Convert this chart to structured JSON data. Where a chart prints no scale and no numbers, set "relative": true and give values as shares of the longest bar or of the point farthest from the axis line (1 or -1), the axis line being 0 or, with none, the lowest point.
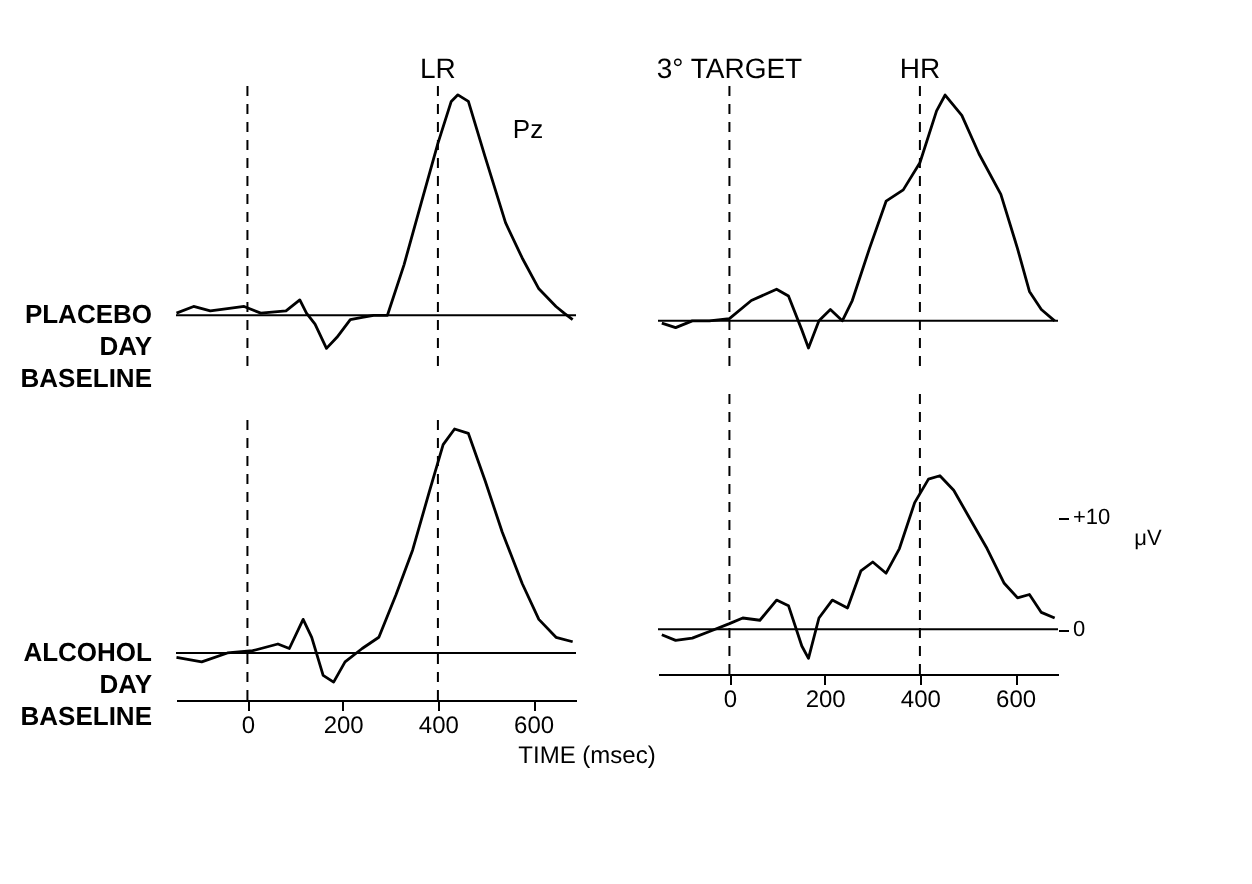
{
  "chart_data": [
    {
      "type": "line",
      "relative": true,
      "ylabel": "PLACEBO DAY BASELINE",
      "annotations": [
        "Pz"
      ],
      "tick_labels": false,
      "grid": false,
      "xlim": [
        -150,
        690
      ],
      "x": [
        -149,
        -113,
        -78,
        -42,
        -7,
        28,
        81,
        110,
        124,
        142,
        166,
        188,
        216,
        241,
        265,
        294,
        329,
        365,
        400,
        428,
        442,
        464,
        499,
        542,
        577,
        612,
        648,
        665,
        683
      ],
      "series": [
        {
          "color": "#000000",
          "values": [
            0.01,
            0.04,
            0.02,
            0.03,
            0.04,
            0.01,
            0.02,
            0.07,
            0.01,
            -0.04,
            -0.15,
            -0.1,
            -0.02,
            -0.01,
            0,
            0,
            0.23,
            0.51,
            0.78,
            0.97,
            1,
            0.97,
            0.72,
            0.42,
            0.26,
            0.12,
            0.04,
            0.01,
            -0.02
          ]
        }
      ],
      "ref_lines": [
        {
          "axis": "x",
          "value": 0,
          "line_style": "dashed"
        },
        {
          "axis": "x",
          "value": 400,
          "label": "LR",
          "line_style": "dashed"
        },
        {
          "axis": "y",
          "value": 0,
          "line_style": "solid"
        }
      ]
    },
    {
      "type": "line",
      "relative": true,
      "tick_labels": false,
      "grid": false,
      "xlim": [
        -150,
        690
      ],
      "x": [
        -142,
        -113,
        -78,
        -42,
        0,
        46,
        99,
        124,
        152,
        166,
        188,
        212,
        237,
        258,
        294,
        329,
        365,
        400,
        435,
        453,
        488,
        524,
        570,
        605,
        630,
        655,
        683
      ],
      "series": [
        {
          "color": "#000000",
          "values": [
            -0.01,
            -0.03,
            0,
            0,
            0.01,
            0.09,
            0.14,
            0.11,
            -0.04,
            -0.12,
            0,
            0.05,
            0,
            0.09,
            0.32,
            0.53,
            0.58,
            0.7,
            0.93,
            1,
            0.91,
            0.74,
            0.56,
            0.32,
            0.13,
            0.05,
            0
          ]
        }
      ],
      "ref_lines": [
        {
          "axis": "x",
          "value": 0,
          "label": "3° TARGET",
          "line_style": "dashed"
        },
        {
          "axis": "x",
          "value": 400,
          "label": "HR",
          "line_style": "dashed"
        },
        {
          "axis": "y",
          "value": 0,
          "line_style": "solid"
        }
      ]
    },
    {
      "type": "line",
      "relative": true,
      "ylabel": "ALCOHOL DAY BASELINE",
      "xlabel": "TIME (msec)",
      "tick_labels": "x",
      "grid": false,
      "xlim": [
        -150,
        690
      ],
      "xticks": [
        0,
        200,
        400,
        600
      ],
      "x": [
        -149,
        -96,
        -42,
        11,
        64,
        88,
        117,
        135,
        159,
        181,
        205,
        241,
        276,
        312,
        347,
        382,
        411,
        435,
        464,
        499,
        535,
        577,
        612,
        648,
        683
      ],
      "series": [
        {
          "color": "#000000",
          "values": [
            -0.02,
            -0.04,
            0,
            0.01,
            0.04,
            0.02,
            0.15,
            0.07,
            -0.1,
            -0.13,
            -0.04,
            0.02,
            0.07,
            0.26,
            0.46,
            0.72,
            0.93,
            1,
            0.98,
            0.77,
            0.54,
            0.31,
            0.15,
            0.07,
            0.05
          ]
        }
      ],
      "ref_lines": [
        {
          "axis": "x",
          "value": 0,
          "line_style": "dashed"
        },
        {
          "axis": "x",
          "value": 400,
          "line_style": "dashed"
        },
        {
          "axis": "y",
          "value": 0,
          "line_style": "solid"
        }
      ]
    },
    {
      "type": "line",
      "ylabel": "μV",
      "grid": false,
      "xlim": [
        -150,
        690
      ],
      "ylim": [
        -4,
        21
      ],
      "xticks": [
        0,
        200,
        400,
        600
      ],
      "yticks": [
        0,
        {
          "value": 10,
          "label": "+10"
        }
      ],
      "x": [
        -142,
        -113,
        -78,
        -42,
        0,
        28,
        64,
        99,
        124,
        152,
        166,
        188,
        216,
        248,
        276,
        301,
        329,
        357,
        389,
        418,
        442,
        471,
        506,
        541,
        577,
        605,
        630,
        655,
        683
      ],
      "series": [
        {
          "color": "#000000",
          "values": [
            -0.5,
            -1,
            -0.8,
            -0.2,
            0.5,
            1,
            0.8,
            2.6,
            2.1,
            -1.5,
            -2.6,
            1,
            2.6,
            1.9,
            5.2,
            6,
            5,
            7.2,
            11.3,
            13.4,
            13.7,
            12.4,
            9.8,
            7.2,
            4.1,
            2.8,
            3.1,
            1.5,
            1
          ]
        }
      ],
      "ref_lines": [
        {
          "axis": "x",
          "value": 0,
          "line_style": "dashed"
        },
        {
          "axis": "x",
          "value": 400,
          "line_style": "dashed"
        },
        {
          "axis": "y",
          "value": 0,
          "line_style": "solid"
        }
      ]
    }
  ]
}
